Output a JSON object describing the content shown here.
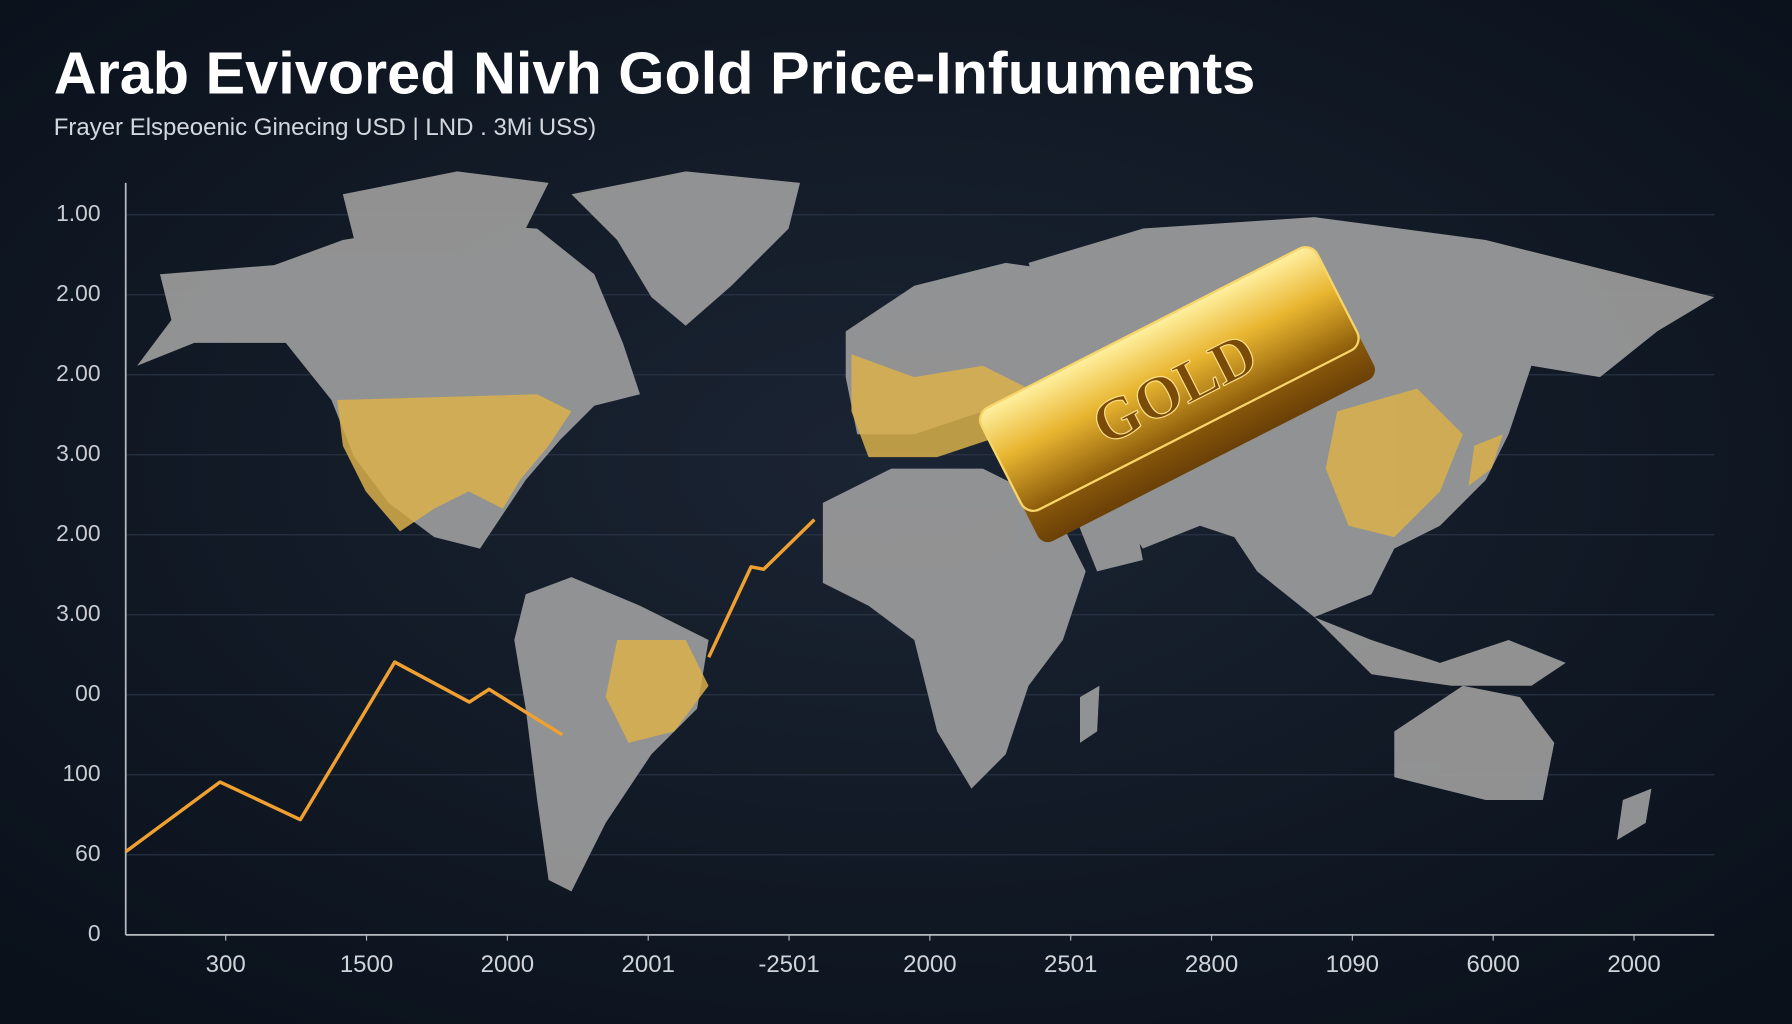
{
  "chart_data": {
    "type": "line",
    "title": "Arab Evivored Nivh Gold Price-Infuuments",
    "subtitle": "Frayer Elspeoenic Ginecing USD | LND . 3Mi USS)",
    "annotation": "GOLD",
    "xlim": [
      -0.71,
      10.57
    ],
    "xticks": [
      {
        "value": 0,
        "label": "300"
      },
      {
        "value": 1,
        "label": "1500"
      },
      {
        "value": 2,
        "label": "2000"
      },
      {
        "value": 3,
        "label": "2001"
      },
      {
        "value": 4,
        "label": "-2501"
      },
      {
        "value": 5,
        "label": "2000"
      },
      {
        "value": 6,
        "label": "2501"
      },
      {
        "value": 7,
        "label": "2800"
      },
      {
        "value": 8,
        "label": "1090"
      },
      {
        "value": 9,
        "label": "6000"
      },
      {
        "value": 10,
        "label": "2000"
      }
    ],
    "ylim": [
      0,
      9.2
    ],
    "yticks": [
      {
        "value": 0,
        "label": "0"
      },
      {
        "value": 1,
        "label": "60"
      },
      {
        "value": 2,
        "label": "100"
      },
      {
        "value": 3,
        "label": "00"
      },
      {
        "value": 4,
        "label": "3.00"
      },
      {
        "value": 5,
        "label": "2.00"
      },
      {
        "value": 6,
        "label": "3.00"
      },
      {
        "value": 7,
        "label": "2.00"
      },
      {
        "value": 8,
        "label": "2.00"
      },
      {
        "value": 9,
        "label": "1.00"
      }
    ],
    "grid": true,
    "series": [
      {
        "color": "#f0a030",
        "x": [
          -0.71,
          -0.04,
          0.53,
          1.2,
          1.73,
          1.87,
          2.39,
          null,
          3.43,
          3.73,
          3.82,
          4.18
        ],
        "values": [
          1.04,
          1.91,
          1.44,
          3.41,
          2.91,
          3.07,
          2.5,
          null,
          3.47,
          4.6,
          4.57,
          5.19
        ]
      }
    ]
  }
}
